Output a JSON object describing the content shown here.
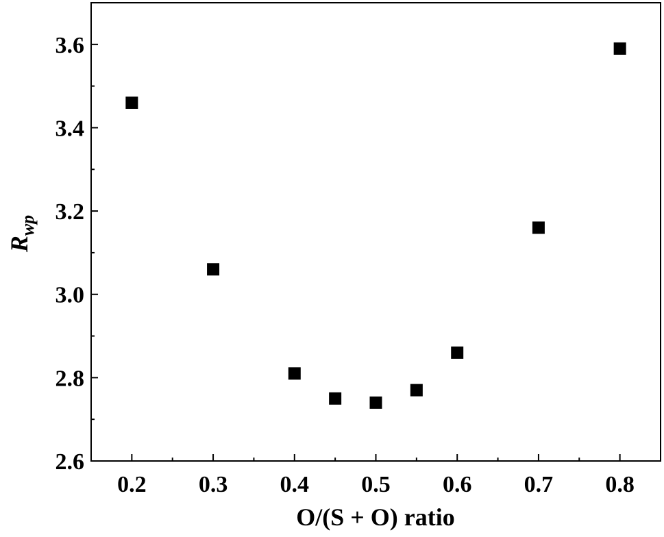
{
  "chart_data": {
    "type": "scatter",
    "title": "",
    "xlabel": "O/(S + O) ratio",
    "ylabel": {
      "main": "R",
      "subscript": "wp"
    },
    "xlim": [
      0.15,
      0.85
    ],
    "ylim": [
      2.6,
      3.7
    ],
    "xticks": [
      0.2,
      0.3,
      0.4,
      0.5,
      0.6,
      0.7,
      0.8
    ],
    "xtick_labels": [
      "0.2",
      "0.3",
      "0.4",
      "0.5",
      "0.6",
      "0.7",
      "0.8"
    ],
    "yticks": [
      2.6,
      2.8,
      3.0,
      3.2,
      3.4,
      3.6
    ],
    "ytick_labels": [
      "2.6",
      "2.8",
      "3.0",
      "3.2",
      "3.4",
      "3.6"
    ],
    "grid": false,
    "marker": "square",
    "marker_color": "#000000",
    "series": [
      {
        "x": [
          0.2,
          0.3,
          0.4,
          0.45,
          0.5,
          0.55,
          0.6,
          0.7,
          0.8
        ],
        "y": [
          3.46,
          3.06,
          2.81,
          2.75,
          2.74,
          2.77,
          2.86,
          3.16,
          3.59
        ]
      }
    ]
  }
}
